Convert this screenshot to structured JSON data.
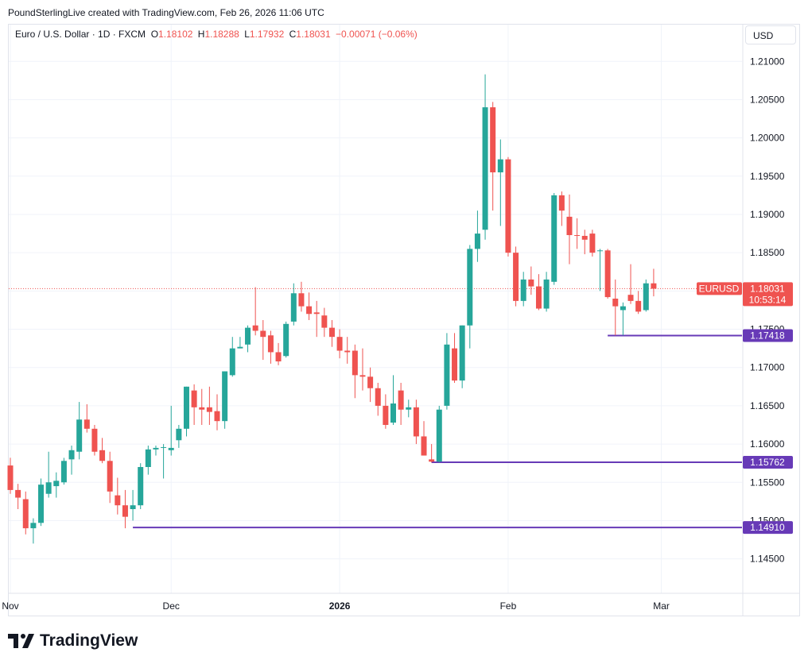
{
  "header": {
    "credit": "PoundSterlingLive created with TradingView.com, Feb 26, 2026 11:06 UTC"
  },
  "legend": {
    "symbol": "Euro / U.S. Dollar · 1D · FXCM",
    "o_label": "O",
    "o_value": "1.18102",
    "h_label": "H",
    "h_value": "1.18288",
    "l_label": "L",
    "l_value": "1.17932",
    "c_label": "C",
    "c_value": "1.18031",
    "change": "−0.00071 (−0.06%)"
  },
  "currency_button": "USD",
  "brand": {
    "name": "TradingView"
  },
  "colors": {
    "up": "#26a69a",
    "down": "#ef5350",
    "level": "#673ab7",
    "grid": "#f0f3fa"
  },
  "chart_data": {
    "type": "candlestick",
    "ylim": [
      1.1405,
      1.2148
    ],
    "y_ticks": [
      "1.14500",
      "1.15000",
      "1.15500",
      "1.16000",
      "1.16500",
      "1.17000",
      "1.17500",
      "1.18000",
      "1.18500",
      "1.19000",
      "1.19500",
      "1.20000",
      "1.20500",
      "1.21000"
    ],
    "x_ticks": [
      {
        "label": "Nov",
        "index": 0,
        "bold": false
      },
      {
        "label": "Dec",
        "index": 21,
        "bold": false
      },
      {
        "label": "2026",
        "index": 43,
        "bold": true
      },
      {
        "label": "Feb",
        "index": 65,
        "bold": false
      },
      {
        "label": "Mar",
        "index": 85,
        "bold": false
      }
    ],
    "last_price": {
      "label": "EURUSD",
      "value": "1.18031",
      "countdown": "10:53:14",
      "price": 1.18031
    },
    "levels": [
      {
        "value": "1.17418",
        "price": 1.17418,
        "from_index": 78
      },
      {
        "value": "1.15762",
        "price": 1.15762,
        "from_index": 55
      },
      {
        "value": "1.14910",
        "price": 1.1491,
        "from_index": 16
      }
    ],
    "candles": [
      {
        "o": 1.1572,
        "h": 1.1582,
        "l": 1.1535,
        "c": 1.154
      },
      {
        "o": 1.154,
        "h": 1.1548,
        "l": 1.1515,
        "c": 1.153
      },
      {
        "o": 1.1528,
        "h": 1.1538,
        "l": 1.1482,
        "c": 1.149
      },
      {
        "o": 1.149,
        "h": 1.1503,
        "l": 1.147,
        "c": 1.1497
      },
      {
        "o": 1.1497,
        "h": 1.1555,
        "l": 1.1493,
        "c": 1.1547
      },
      {
        "o": 1.1535,
        "h": 1.159,
        "l": 1.153,
        "c": 1.155
      },
      {
        "o": 1.1545,
        "h": 1.1563,
        "l": 1.153,
        "c": 1.1552
      },
      {
        "o": 1.155,
        "h": 1.1582,
        "l": 1.1547,
        "c": 1.1578
      },
      {
        "o": 1.158,
        "h": 1.1598,
        "l": 1.156,
        "c": 1.1592
      },
      {
        "o": 1.159,
        "h": 1.1655,
        "l": 1.158,
        "c": 1.1632
      },
      {
        "o": 1.1632,
        "h": 1.1652,
        "l": 1.1615,
        "c": 1.162
      },
      {
        "o": 1.162,
        "h": 1.1625,
        "l": 1.1585,
        "c": 1.159
      },
      {
        "o": 1.1592,
        "h": 1.1608,
        "l": 1.1575,
        "c": 1.1578
      },
      {
        "o": 1.1578,
        "h": 1.159,
        "l": 1.1523,
        "c": 1.1538
      },
      {
        "o": 1.1533,
        "h": 1.1556,
        "l": 1.1508,
        "c": 1.152
      },
      {
        "o": 1.152,
        "h": 1.154,
        "l": 1.149,
        "c": 1.1505
      },
      {
        "o": 1.1515,
        "h": 1.154,
        "l": 1.15,
        "c": 1.152
      },
      {
        "o": 1.152,
        "h": 1.1575,
        "l": 1.1515,
        "c": 1.157
      },
      {
        "o": 1.157,
        "h": 1.1598,
        "l": 1.156,
        "c": 1.1593
      },
      {
        "o": 1.1593,
        "h": 1.1598,
        "l": 1.1585,
        "c": 1.1595
      },
      {
        "o": 1.1595,
        "h": 1.16,
        "l": 1.1555,
        "c": 1.1596
      },
      {
        "o": 1.1592,
        "h": 1.165,
        "l": 1.1585,
        "c": 1.1595
      },
      {
        "o": 1.1605,
        "h": 1.1625,
        "l": 1.1595,
        "c": 1.162
      },
      {
        "o": 1.162,
        "h": 1.1675,
        "l": 1.161,
        "c": 1.1675
      },
      {
        "o": 1.167,
        "h": 1.1678,
        "l": 1.1625,
        "c": 1.1648
      },
      {
        "o": 1.1648,
        "h": 1.1672,
        "l": 1.1625,
        "c": 1.1645
      },
      {
        "o": 1.1648,
        "h": 1.1675,
        "l": 1.1625,
        "c": 1.1642
      },
      {
        "o": 1.1643,
        "h": 1.1665,
        "l": 1.1618,
        "c": 1.163
      },
      {
        "o": 1.163,
        "h": 1.1695,
        "l": 1.162,
        "c": 1.1695
      },
      {
        "o": 1.169,
        "h": 1.174,
        "l": 1.1688,
        "c": 1.1725
      },
      {
        "o": 1.1725,
        "h": 1.174,
        "l": 1.1725,
        "c": 1.1727
      },
      {
        "o": 1.173,
        "h": 1.1755,
        "l": 1.172,
        "c": 1.1752
      },
      {
        "o": 1.1755,
        "h": 1.1805,
        "l": 1.1742,
        "c": 1.1748
      },
      {
        "o": 1.1748,
        "h": 1.1762,
        "l": 1.171,
        "c": 1.174
      },
      {
        "o": 1.1742,
        "h": 1.1748,
        "l": 1.1705,
        "c": 1.172
      },
      {
        "o": 1.172,
        "h": 1.1732,
        "l": 1.1703,
        "c": 1.1708
      },
      {
        "o": 1.1715,
        "h": 1.176,
        "l": 1.1713,
        "c": 1.1757
      },
      {
        "o": 1.176,
        "h": 1.181,
        "l": 1.1755,
        "c": 1.1797
      },
      {
        "o": 1.1797,
        "h": 1.1812,
        "l": 1.1773,
        "c": 1.178
      },
      {
        "o": 1.178,
        "h": 1.1798,
        "l": 1.1762,
        "c": 1.177
      },
      {
        "o": 1.1772,
        "h": 1.1787,
        "l": 1.174,
        "c": 1.177
      },
      {
        "o": 1.1768,
        "h": 1.1778,
        "l": 1.174,
        "c": 1.1752
      },
      {
        "o": 1.1752,
        "h": 1.1762,
        "l": 1.1727,
        "c": 1.174
      },
      {
        "o": 1.174,
        "h": 1.175,
        "l": 1.1712,
        "c": 1.1722
      },
      {
        "o": 1.1722,
        "h": 1.174,
        "l": 1.1705,
        "c": 1.172
      },
      {
        "o": 1.1722,
        "h": 1.173,
        "l": 1.166,
        "c": 1.169
      },
      {
        "o": 1.169,
        "h": 1.1725,
        "l": 1.167,
        "c": 1.1688
      },
      {
        "o": 1.1688,
        "h": 1.17,
        "l": 1.1655,
        "c": 1.1673
      },
      {
        "o": 1.1673,
        "h": 1.168,
        "l": 1.1637,
        "c": 1.165
      },
      {
        "o": 1.165,
        "h": 1.1665,
        "l": 1.162,
        "c": 1.1625
      },
      {
        "o": 1.1628,
        "h": 1.169,
        "l": 1.1625,
        "c": 1.1653
      },
      {
        "o": 1.167,
        "h": 1.168,
        "l": 1.1625,
        "c": 1.1645
      },
      {
        "o": 1.1645,
        "h": 1.1658,
        "l": 1.1635,
        "c": 1.1648
      },
      {
        "o": 1.1648,
        "h": 1.1658,
        "l": 1.16,
        "c": 1.161
      },
      {
        "o": 1.161,
        "h": 1.163,
        "l": 1.1585,
        "c": 1.1585
      },
      {
        "o": 1.158,
        "h": 1.16,
        "l": 1.1576,
        "c": 1.1577
      },
      {
        "o": 1.1577,
        "h": 1.165,
        "l": 1.1576,
        "c": 1.1645
      },
      {
        "o": 1.165,
        "h": 1.1745,
        "l": 1.1645,
        "c": 1.173
      },
      {
        "o": 1.1725,
        "h": 1.1745,
        "l": 1.168,
        "c": 1.1683
      },
      {
        "o": 1.1683,
        "h": 1.1755,
        "l": 1.1673,
        "c": 1.1755
      },
      {
        "o": 1.1755,
        "h": 1.186,
        "l": 1.1725,
        "c": 1.1855
      },
      {
        "o": 1.1855,
        "h": 1.1905,
        "l": 1.1838,
        "c": 1.1875
      },
      {
        "o": 1.188,
        "h": 1.2083,
        "l": 1.1867,
        "c": 1.204
      },
      {
        "o": 1.204,
        "h": 1.2047,
        "l": 1.1905,
        "c": 1.1955
      },
      {
        "o": 1.1955,
        "h": 1.1998,
        "l": 1.1885,
        "c": 1.1972
      },
      {
        "o": 1.1972,
        "h": 1.1975,
        "l": 1.1845,
        "c": 1.185
      },
      {
        "o": 1.185,
        "h": 1.1858,
        "l": 1.178,
        "c": 1.1787
      },
      {
        "o": 1.1787,
        "h": 1.1825,
        "l": 1.178,
        "c": 1.1815
      },
      {
        "o": 1.1815,
        "h": 1.1832,
        "l": 1.1795,
        "c": 1.1806
      },
      {
        "o": 1.1806,
        "h": 1.1822,
        "l": 1.1775,
        "c": 1.1777
      },
      {
        "o": 1.1777,
        "h": 1.1825,
        "l": 1.1773,
        "c": 1.1815
      },
      {
        "o": 1.1812,
        "h": 1.1928,
        "l": 1.1808,
        "c": 1.1925
      },
      {
        "o": 1.1925,
        "h": 1.193,
        "l": 1.1885,
        "c": 1.1905
      },
      {
        "o": 1.1897,
        "h": 1.1926,
        "l": 1.1835,
        "c": 1.1873
      },
      {
        "o": 1.1873,
        "h": 1.1895,
        "l": 1.1855,
        "c": 1.1872
      },
      {
        "o": 1.1872,
        "h": 1.188,
        "l": 1.1848,
        "c": 1.1867
      },
      {
        "o": 1.1875,
        "h": 1.188,
        "l": 1.1845,
        "c": 1.185
      },
      {
        "o": 1.1852,
        "h": 1.1855,
        "l": 1.18,
        "c": 1.1853
      },
      {
        "o": 1.1853,
        "h": 1.1855,
        "l": 1.179,
        "c": 1.1792
      },
      {
        "o": 1.179,
        "h": 1.1815,
        "l": 1.1742,
        "c": 1.178
      },
      {
        "o": 1.1775,
        "h": 1.1785,
        "l": 1.1742,
        "c": 1.178
      },
      {
        "o": 1.1795,
        "h": 1.1835,
        "l": 1.1783,
        "c": 1.1787
      },
      {
        "o": 1.1787,
        "h": 1.18,
        "l": 1.177,
        "c": 1.1773
      },
      {
        "o": 1.1775,
        "h": 1.1815,
        "l": 1.1773,
        "c": 1.181
      },
      {
        "o": 1.181,
        "h": 1.1829,
        "l": 1.1793,
        "c": 1.1803
      }
    ]
  }
}
